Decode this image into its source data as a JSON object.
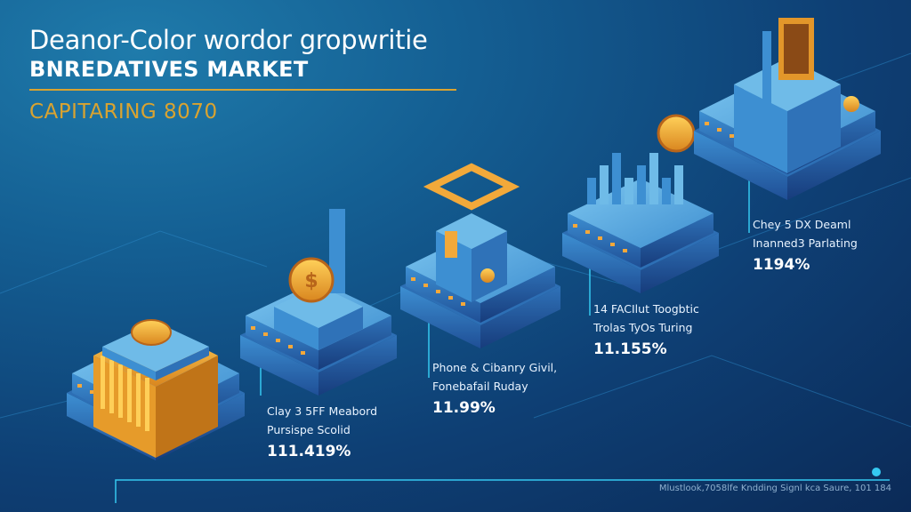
{
  "header": {
    "title": "Deanor-Color wordor gropwritie",
    "subtitle": "BNREDATIVES MARKET",
    "tagline": "CAPITARING 8070"
  },
  "stages": [
    {
      "line1": "Clay 3 5FF Meabord",
      "line2": "Pursispe Scolid",
      "value": "111.419%"
    },
    {
      "line1": "Phone & Cibanry Givil,",
      "line2": "Fonebafail Ruday",
      "value": "11.99%"
    },
    {
      "line1": "14 FACIlut Toogbtic",
      "line2": "Trolas TyOs Turing",
      "value": "11.155%"
    },
    {
      "line1": "Chey 5 DX Deaml",
      "line2": "Inanned3 Parlating",
      "value": "1194%"
    }
  ],
  "footer": "Mlustlook,7058lfe Kndding Signl kca Saure, 101 184",
  "colors": {
    "accent": "#d9a330",
    "platform": "#4aa3dc",
    "line": "#35c8f0"
  }
}
